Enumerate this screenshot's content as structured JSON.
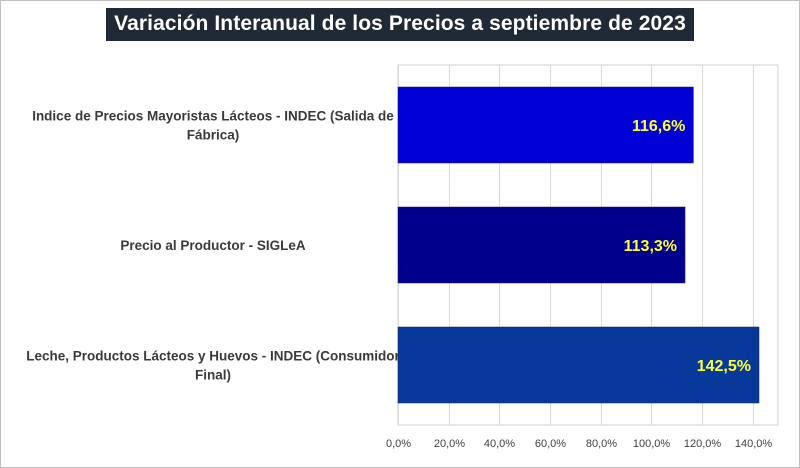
{
  "chart_data": {
    "type": "bar",
    "orientation": "horizontal",
    "title": "Variación Interanual de los Precios a septiembre de 2023",
    "categories": [
      "Indice de Precios Mayoristas Lácteos - INDEC (Salida de Fábrica)",
      "Precio al Productor - SIGLeA",
      "Leche, Productos Lácteos y Huevos - INDEC (Consumidor Final)"
    ],
    "category_lines": [
      [
        "Indice de Precios Mayoristas Lácteos - INDEC (Salida de",
        "Fábrica)"
      ],
      [
        "Precio al Productor - SIGLeA"
      ],
      [
        "Leche, Productos Lácteos y Huevos - INDEC (Consumidor",
        "Final)"
      ]
    ],
    "values": [
      116.6,
      113.3,
      142.5
    ],
    "data_labels": [
      "116,6%",
      "113,3%",
      "142,5%"
    ],
    "bar_colors": [
      "#0000d6",
      "#00008c",
      "#07399a"
    ],
    "xlim": [
      0,
      150
    ],
    "x_ticks": [
      0,
      20,
      40,
      60,
      80,
      100,
      120,
      140
    ],
    "x_tick_labels": [
      "0,0%",
      "20,0%",
      "40,0%",
      "60,0%",
      "80,0%",
      "100,0%",
      "120,0%",
      "140,0%"
    ],
    "xlabel": "",
    "ylabel": "",
    "grid": true,
    "legend": "none"
  }
}
